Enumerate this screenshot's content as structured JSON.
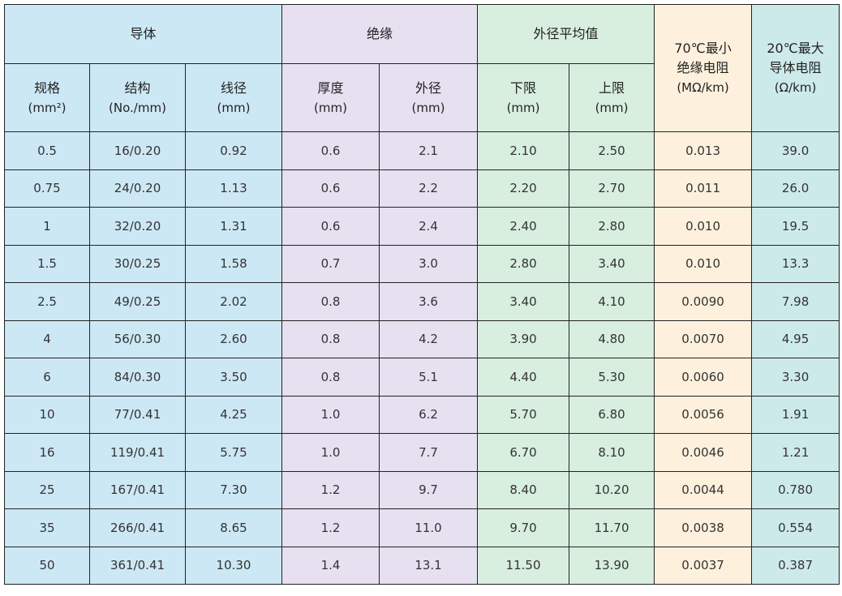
{
  "colors": {
    "conductor": "#cde8f5",
    "insulation": "#e6e0f1",
    "outer_diameter": "#d8eedf",
    "insulation_resistance": "#fdf1dd",
    "conductor_resistance": "#cdeaea"
  },
  "headers": {
    "conductor": "导体",
    "insulation": "绝缘",
    "outer_diameter_avg": "外径平均值",
    "ins_resistance": {
      "line1": "70℃最小",
      "line2": "绝缘电阻",
      "unit": "(MΩ/km)"
    },
    "cond_resistance": {
      "line1": "20℃最大",
      "line2": "导体电阻",
      "unit": "(Ω/km)"
    },
    "spec": {
      "label": "规格",
      "unit": "(mm²)"
    },
    "structure": {
      "label": "结构",
      "unit": "(No./mm)"
    },
    "wire_diameter": {
      "label": "线径",
      "unit": "(mm)"
    },
    "thickness": {
      "label": "厚度",
      "unit": "(mm)"
    },
    "outer_diameter": {
      "label": "外径",
      "unit": "(mm)"
    },
    "lower_limit": {
      "label": "下限",
      "unit": "(mm)"
    },
    "upper_limit": {
      "label": "上限",
      "unit": "(mm)"
    }
  },
  "rows": [
    [
      "0.5",
      "16/0.20",
      "0.92",
      "0.6",
      "2.1",
      "2.10",
      "2.50",
      "0.013",
      "39.0"
    ],
    [
      "0.75",
      "24/0.20",
      "1.13",
      "0.6",
      "2.2",
      "2.20",
      "2.70",
      "0.011",
      "26.0"
    ],
    [
      "1",
      "32/0.20",
      "1.31",
      "0.6",
      "2.4",
      "2.40",
      "2.80",
      "0.010",
      "19.5"
    ],
    [
      "1.5",
      "30/0.25",
      "1.58",
      "0.7",
      "3.0",
      "2.80",
      "3.40",
      "0.010",
      "13.3"
    ],
    [
      "2.5",
      "49/0.25",
      "2.02",
      "0.8",
      "3.6",
      "3.40",
      "4.10",
      "0.0090",
      "7.98"
    ],
    [
      "4",
      "56/0.30",
      "2.60",
      "0.8",
      "4.2",
      "3.90",
      "4.80",
      "0.0070",
      "4.95"
    ],
    [
      "6",
      "84/0.30",
      "3.50",
      "0.8",
      "5.1",
      "4.40",
      "5.30",
      "0.0060",
      "3.30"
    ],
    [
      "10",
      "77/0.41",
      "4.25",
      "1.0",
      "6.2",
      "5.70",
      "6.80",
      "0.0056",
      "1.91"
    ],
    [
      "16",
      "119/0.41",
      "5.75",
      "1.0",
      "7.7",
      "6.70",
      "8.10",
      "0.0046",
      "1.21"
    ],
    [
      "25",
      "167/0.41",
      "7.30",
      "1.2",
      "9.7",
      "8.40",
      "10.20",
      "0.0044",
      "0.780"
    ],
    [
      "35",
      "266/0.41",
      "8.65",
      "1.2",
      "11.0",
      "9.70",
      "11.70",
      "0.0038",
      "0.554"
    ],
    [
      "50",
      "361/0.41",
      "10.30",
      "1.4",
      "13.1",
      "11.50",
      "13.90",
      "0.0037",
      "0.387"
    ]
  ]
}
